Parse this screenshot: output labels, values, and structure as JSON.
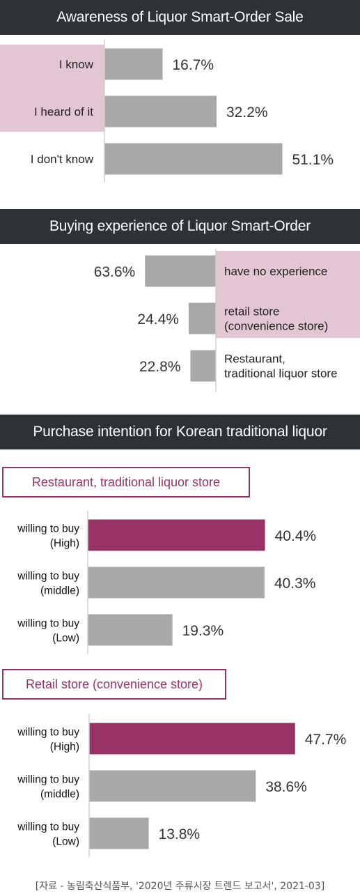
{
  "charts": {
    "awareness": {
      "title": "Awareness of Liquor Smart-Order Sale"
    },
    "experience": {
      "title": "Buying experience of Liquor Smart-Order"
    },
    "intention": {
      "title": "Purchase intention for Korean traditional liquor",
      "restaurant_title": "Restaurant,  traditional liquor store",
      "retail_title": "Retail store (convenience store)"
    }
  },
  "colors": {
    "header_bg": "#2c3236",
    "bar": "#a8a8a8",
    "highlight": "#993365",
    "label_box": "#e2c6d4"
  },
  "chart_data": [
    {
      "type": "bar",
      "title": "Awareness of Liquor Smart-Order Sale",
      "orientation": "horizontal",
      "categories": [
        "I know",
        "I heard of it",
        "I don't know"
      ],
      "values": [
        16.7,
        32.2,
        51.1
      ],
      "value_labels": [
        "16.7%",
        "32.2%",
        "51.1%"
      ],
      "highlighted_categories": [
        "I know",
        "I heard of it"
      ]
    },
    {
      "type": "bar",
      "title": "Buying experience of Liquor Smart-Order",
      "orientation": "horizontal",
      "direction": "right-to-left",
      "categories": [
        "have no experience",
        "retail store\n(convenience store)",
        "Restaurant,\ntraditional liquor store"
      ],
      "values": [
        63.6,
        24.4,
        22.8
      ],
      "value_labels": [
        "63.6%",
        "24.4%",
        "22.8%"
      ],
      "highlighted_categories": [
        "have no experience",
        "retail store\n(convenience store)"
      ]
    },
    {
      "type": "bar",
      "title": "Restaurant,  traditional liquor store",
      "orientation": "horizontal",
      "categories": [
        "willing to buy\n(High)",
        "willing to buy\n(middle)",
        "willing to buy\n(Low)"
      ],
      "values": [
        40.4,
        40.3,
        19.3
      ],
      "value_labels": [
        "40.4%",
        "40.3%",
        "19.3%"
      ],
      "highlighted_categories": [
        "willing to buy\n(High)"
      ]
    },
    {
      "type": "bar",
      "title": "Retail store (convenience store)",
      "orientation": "horizontal",
      "categories": [
        "willing to buy\n(High)",
        "willing to buy\n(middle)",
        "willing to buy\n(Low)"
      ],
      "values": [
        47.7,
        38.6,
        13.8
      ],
      "value_labels": [
        "47.7%",
        "38.6%",
        "13.8%"
      ],
      "highlighted_categories": [
        "willing to buy\n(High)"
      ]
    }
  ],
  "source": "[자료 - 농림축산식품부, '2020년 주류시장 트렌드 보고서', 2021-03]"
}
